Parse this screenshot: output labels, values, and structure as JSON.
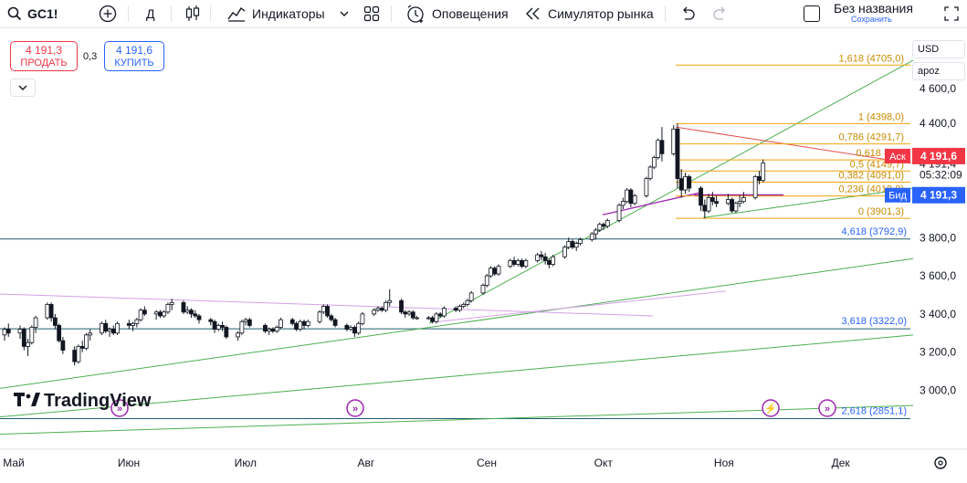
{
  "toolbar": {
    "symbol": "GC1!",
    "interval": "Д",
    "indicators_label": "Индикаторы",
    "alerts_label": "Оповещения",
    "replay_label": "Симулятор рынка",
    "layout_title": "Без названия",
    "layout_save": "Сохранить",
    "icons": [
      "search-icon",
      "add-symbol-icon",
      "candles-icon",
      "indicators-icon",
      "templates-icon",
      "alert-icon",
      "replay-icon",
      "undo-icon",
      "redo-icon",
      "fullscreen-icon"
    ]
  },
  "trade": {
    "sell_price": "4 191,3",
    "sell_label": "ПРОДАТЬ",
    "spread": "0,3",
    "buy_price": "4 191,6",
    "buy_label": "КУПИТЬ"
  },
  "right_options": {
    "currency": "USD",
    "mode": "apoz"
  },
  "watermark": "TradingView",
  "colors": {
    "up": "#ffffff",
    "down": "#131722",
    "fib": "#f0a30a",
    "trend_green": "#4caf50",
    "horizontal_line": "#1e5c6e",
    "ask": "#f23645",
    "bid": "#2962ff"
  },
  "chart_data": {
    "type": "candlestick",
    "symbol": "GC1!",
    "x_range": [
      "2025-05-01",
      "2025-12-31"
    ],
    "x_ticks": [
      "Май",
      "Июн",
      "Июл",
      "Авг",
      "Сен",
      "Окт",
      "Ноя",
      "Дек"
    ],
    "y_range": [
      2840,
      4780
    ],
    "y_ticks": [
      "4 400,0",
      "3 800,0",
      "3 600,0",
      "3 400,0",
      "3 200,0",
      "3 000,0"
    ],
    "partial_tick": "4 600,0",
    "last_price": "4 191,4",
    "countdown": "05:32:09",
    "ask": {
      "label": "Аск",
      "price": "4 191,6",
      "value": 4191.6
    },
    "bid": {
      "label": "Бид",
      "price": "4 191,3",
      "value": 4191.3
    },
    "fib_levels": [
      {
        "label": "1,618 (4705,0)",
        "value": 4705.0
      },
      {
        "label": "1 (4398,0)",
        "value": 4398.0
      },
      {
        "label": "0,786 (4291,7)",
        "value": 4291.7
      },
      {
        "label": "0,618 (420",
        "value": 4208.0
      },
      {
        "label": "0,5 (4149,7)",
        "value": 4149.7
      },
      {
        "label": "0,382 (4091,0)",
        "value": 4091.0
      },
      {
        "label": "0,236 (4018,8)",
        "value": 4018.8
      },
      {
        "label": "0 (3901,3)",
        "value": 3901.3
      }
    ],
    "horizontal_levels": [
      {
        "label": "4,618 (3792,9)",
        "value": 3792.9
      },
      {
        "label": "3,618 (3322,0)",
        "value": 3322.0
      },
      {
        "label": "2,618 (2851,1)",
        "value": 2851.1
      }
    ],
    "candles": [
      [
        "2025-05-01",
        3290,
        3330,
        3260,
        3320
      ],
      [
        "2025-05-02",
        3320,
        3350,
        3280,
        3300
      ],
      [
        "2025-05-05",
        3300,
        3340,
        3270,
        3320
      ],
      [
        "2025-05-06",
        3320,
        3330,
        3210,
        3230
      ],
      [
        "2025-05-07",
        3230,
        3270,
        3180,
        3250
      ],
      [
        "2025-05-08",
        3250,
        3340,
        3240,
        3330
      ],
      [
        "2025-05-09",
        3330,
        3390,
        3300,
        3380
      ],
      [
        "2025-05-12",
        3380,
        3460,
        3370,
        3450
      ],
      [
        "2025-05-13",
        3450,
        3460,
        3360,
        3380
      ],
      [
        "2025-05-14",
        3380,
        3400,
        3320,
        3340
      ],
      [
        "2025-05-15",
        3340,
        3350,
        3250,
        3260
      ],
      [
        "2025-05-16",
        3260,
        3280,
        3190,
        3210
      ],
      [
        "2025-05-19",
        3210,
        3230,
        3130,
        3150
      ],
      [
        "2025-05-20",
        3150,
        3240,
        3140,
        3230
      ],
      [
        "2025-05-21",
        3230,
        3260,
        3200,
        3220
      ],
      [
        "2025-05-22",
        3220,
        3300,
        3210,
        3290
      ],
      [
        "2025-05-23",
        3290,
        3320,
        3260,
        3300
      ],
      [
        "2025-05-26",
        3300,
        3360,
        3290,
        3350
      ],
      [
        "2025-05-27",
        3350,
        3370,
        3300,
        3310
      ],
      [
        "2025-05-28",
        3310,
        3330,
        3280,
        3320
      ],
      [
        "2025-05-29",
        3320,
        3340,
        3290,
        3300
      ],
      [
        "2025-05-30",
        3300,
        3360,
        3290,
        3350
      ],
      [
        "2025-06-02",
        3350,
        3370,
        3320,
        3340
      ],
      [
        "2025-06-03",
        3340,
        3360,
        3310,
        3350
      ],
      [
        "2025-06-04",
        3350,
        3380,
        3330,
        3370
      ],
      [
        "2025-06-05",
        3370,
        3430,
        3360,
        3420
      ],
      [
        "2025-06-06",
        3420,
        3440,
        3390,
        3400
      ],
      [
        "2025-06-09",
        3400,
        3420,
        3370,
        3410
      ],
      [
        "2025-06-10",
        3410,
        3420,
        3380,
        3390
      ],
      [
        "2025-06-11",
        3390,
        3420,
        3380,
        3410
      ],
      [
        "2025-06-12",
        3410,
        3460,
        3400,
        3450
      ],
      [
        "2025-06-13",
        3450,
        3480,
        3420,
        3460
      ],
      [
        "2025-06-16",
        3460,
        3470,
        3400,
        3410
      ],
      [
        "2025-06-17",
        3410,
        3440,
        3400,
        3420
      ],
      [
        "2025-06-18",
        3420,
        3430,
        3380,
        3400
      ],
      [
        "2025-06-19",
        3400,
        3420,
        3380,
        3390
      ],
      [
        "2025-06-20",
        3390,
        3400,
        3350,
        3370
      ],
      [
        "2025-06-23",
        3370,
        3380,
        3340,
        3360
      ],
      [
        "2025-06-24",
        3360,
        3370,
        3300,
        3320
      ],
      [
        "2025-06-25",
        3320,
        3350,
        3310,
        3340
      ],
      [
        "2025-06-26",
        3340,
        3360,
        3310,
        3330
      ],
      [
        "2025-06-27",
        3330,
        3340,
        3270,
        3280
      ],
      [
        "2025-06-30",
        3280,
        3310,
        3260,
        3300
      ],
      [
        "2025-07-01",
        3300,
        3370,
        3290,
        3360
      ],
      [
        "2025-07-02",
        3360,
        3380,
        3340,
        3370
      ],
      [
        "2025-07-03",
        3370,
        3380,
        3330,
        3340
      ],
      [
        "2025-07-07",
        3340,
        3350,
        3300,
        3310
      ],
      [
        "2025-07-08",
        3310,
        3330,
        3290,
        3320
      ],
      [
        "2025-07-09",
        3320,
        3330,
        3300,
        3310
      ],
      [
        "2025-07-10",
        3310,
        3340,
        3300,
        3330
      ],
      [
        "2025-07-11",
        3330,
        3380,
        3320,
        3370
      ],
      [
        "2025-07-14",
        3370,
        3380,
        3340,
        3350
      ],
      [
        "2025-07-15",
        3350,
        3360,
        3310,
        3320
      ],
      [
        "2025-07-16",
        3320,
        3370,
        3310,
        3360
      ],
      [
        "2025-07-17",
        3360,
        3370,
        3320,
        3340
      ],
      [
        "2025-07-18",
        3340,
        3370,
        3330,
        3360
      ],
      [
        "2025-07-21",
        3360,
        3420,
        3350,
        3410
      ],
      [
        "2025-07-22",
        3410,
        3450,
        3400,
        3440
      ],
      [
        "2025-07-23",
        3440,
        3450,
        3380,
        3390
      ],
      [
        "2025-07-24",
        3390,
        3400,
        3360,
        3370
      ],
      [
        "2025-07-25",
        3370,
        3380,
        3330,
        3340
      ],
      [
        "2025-07-28",
        3340,
        3350,
        3310,
        3320
      ],
      [
        "2025-07-29",
        3320,
        3340,
        3310,
        3330
      ],
      [
        "2025-07-30",
        3330,
        3340,
        3280,
        3300
      ],
      [
        "2025-07-31",
        3300,
        3360,
        3290,
        3350
      ],
      [
        "2025-08-01",
        3350,
        3410,
        3340,
        3400
      ],
      [
        "2025-08-04",
        3400,
        3430,
        3390,
        3420
      ],
      [
        "2025-08-05",
        3420,
        3440,
        3410,
        3430
      ],
      [
        "2025-08-06",
        3430,
        3440,
        3410,
        3420
      ],
      [
        "2025-08-07",
        3420,
        3470,
        3410,
        3460
      ],
      [
        "2025-08-08",
        3460,
        3530,
        3440,
        3470
      ],
      [
        "2025-08-11",
        3470,
        3480,
        3400,
        3410
      ],
      [
        "2025-08-12",
        3410,
        3420,
        3380,
        3400
      ],
      [
        "2025-08-13",
        3400,
        3420,
        3390,
        3410
      ],
      [
        "2025-08-14",
        3410,
        3420,
        3370,
        3380
      ],
      [
        "2025-08-15",
        3380,
        3390,
        3370,
        3380
      ],
      [
        "2025-08-18",
        3380,
        3390,
        3370,
        3380
      ],
      [
        "2025-08-19",
        3380,
        3390,
        3350,
        3360
      ],
      [
        "2025-08-20",
        3360,
        3410,
        3350,
        3400
      ],
      [
        "2025-08-21",
        3400,
        3410,
        3380,
        3390
      ],
      [
        "2025-08-22",
        3390,
        3440,
        3380,
        3430
      ],
      [
        "2025-08-25",
        3430,
        3440,
        3410,
        3420
      ],
      [
        "2025-08-26",
        3420,
        3450,
        3410,
        3440
      ],
      [
        "2025-08-27",
        3440,
        3460,
        3430,
        3450
      ],
      [
        "2025-08-28",
        3450,
        3480,
        3440,
        3470
      ],
      [
        "2025-08-29",
        3470,
        3520,
        3460,
        3510
      ],
      [
        "2025-09-01",
        3510,
        3560,
        3500,
        3550
      ],
      [
        "2025-09-02",
        3550,
        3610,
        3540,
        3600
      ],
      [
        "2025-09-03",
        3600,
        3650,
        3590,
        3640
      ],
      [
        "2025-09-04",
        3640,
        3650,
        3600,
        3610
      ],
      [
        "2025-09-05",
        3610,
        3660,
        3600,
        3650
      ],
      [
        "2025-09-08",
        3650,
        3690,
        3640,
        3680
      ],
      [
        "2025-09-09",
        3680,
        3700,
        3650,
        3660
      ],
      [
        "2025-09-10",
        3660,
        3690,
        3650,
        3680
      ],
      [
        "2025-09-11",
        3680,
        3690,
        3640,
        3650
      ],
      [
        "2025-09-12",
        3650,
        3690,
        3640,
        3680
      ],
      [
        "2025-09-15",
        3680,
        3720,
        3670,
        3710
      ],
      [
        "2025-09-16",
        3710,
        3730,
        3680,
        3700
      ],
      [
        "2025-09-17",
        3700,
        3720,
        3660,
        3680
      ],
      [
        "2025-09-18",
        3680,
        3690,
        3640,
        3660
      ],
      [
        "2025-09-19",
        3660,
        3710,
        3650,
        3700
      ],
      [
        "2025-09-22",
        3700,
        3760,
        3690,
        3750
      ],
      [
        "2025-09-23",
        3750,
        3800,
        3740,
        3780
      ],
      [
        "2025-09-24",
        3780,
        3790,
        3740,
        3750
      ],
      [
        "2025-09-25",
        3750,
        3780,
        3730,
        3770
      ],
      [
        "2025-09-26",
        3770,
        3800,
        3760,
        3790
      ],
      [
        "2025-09-29",
        3790,
        3830,
        3780,
        3820
      ],
      [
        "2025-09-30",
        3820,
        3850,
        3790,
        3840
      ],
      [
        "2025-10-01",
        3840,
        3880,
        3830,
        3870
      ],
      [
        "2025-10-02",
        3870,
        3880,
        3840,
        3860
      ],
      [
        "2025-10-03",
        3860,
        3900,
        3850,
        3890
      ],
      [
        "2025-10-06",
        3890,
        3980,
        3880,
        3970
      ],
      [
        "2025-10-07",
        3970,
        4010,
        3950,
        3990
      ],
      [
        "2025-10-08",
        3990,
        4060,
        3980,
        4050
      ],
      [
        "2025-10-09",
        4050,
        4060,
        3960,
        3980
      ],
      [
        "2025-10-10",
        3980,
        4030,
        3970,
        4020
      ],
      [
        "2025-10-13",
        4020,
        4120,
        4010,
        4110
      ],
      [
        "2025-10-14",
        4110,
        4180,
        4100,
        4170
      ],
      [
        "2025-10-15",
        4170,
        4230,
        4160,
        4220
      ],
      [
        "2025-10-16",
        4220,
        4320,
        4210,
        4310
      ],
      [
        "2025-10-17",
        4310,
        4380,
        4200,
        4240
      ],
      [
        "2025-10-20",
        4240,
        4390,
        4230,
        4370
      ],
      [
        "2025-10-21",
        4370,
        4398,
        4060,
        4110
      ],
      [
        "2025-10-22",
        4110,
        4160,
        4010,
        4050
      ],
      [
        "2025-10-23",
        4050,
        4140,
        4030,
        4120
      ],
      [
        "2025-10-24",
        4120,
        4130,
        4040,
        4060
      ],
      [
        "2025-10-27",
        4060,
        4070,
        3940,
        3970
      ],
      [
        "2025-10-28",
        3970,
        4000,
        3901,
        3940
      ],
      [
        "2025-10-29",
        3940,
        4030,
        3930,
        4010
      ],
      [
        "2025-10-30",
        4010,
        4040,
        3970,
        3990
      ],
      [
        "2025-10-31",
        3990,
        4020,
        3960,
        3980
      ],
      [
        "2025-11-03",
        3980,
        4030,
        3970,
        4000
      ],
      [
        "2025-11-04",
        4000,
        4010,
        3930,
        3940
      ],
      [
        "2025-11-05",
        3940,
        3990,
        3930,
        3980
      ],
      [
        "2025-11-06",
        3980,
        4020,
        3960,
        3990
      ],
      [
        "2025-11-07",
        3990,
        4040,
        3980,
        4010
      ],
      [
        "2025-11-10",
        4010,
        4130,
        4000,
        4120
      ],
      [
        "2025-11-11",
        4120,
        4150,
        4080,
        4100
      ],
      [
        "2025-11-12",
        4100,
        4210,
        4090,
        4191
      ]
    ]
  }
}
